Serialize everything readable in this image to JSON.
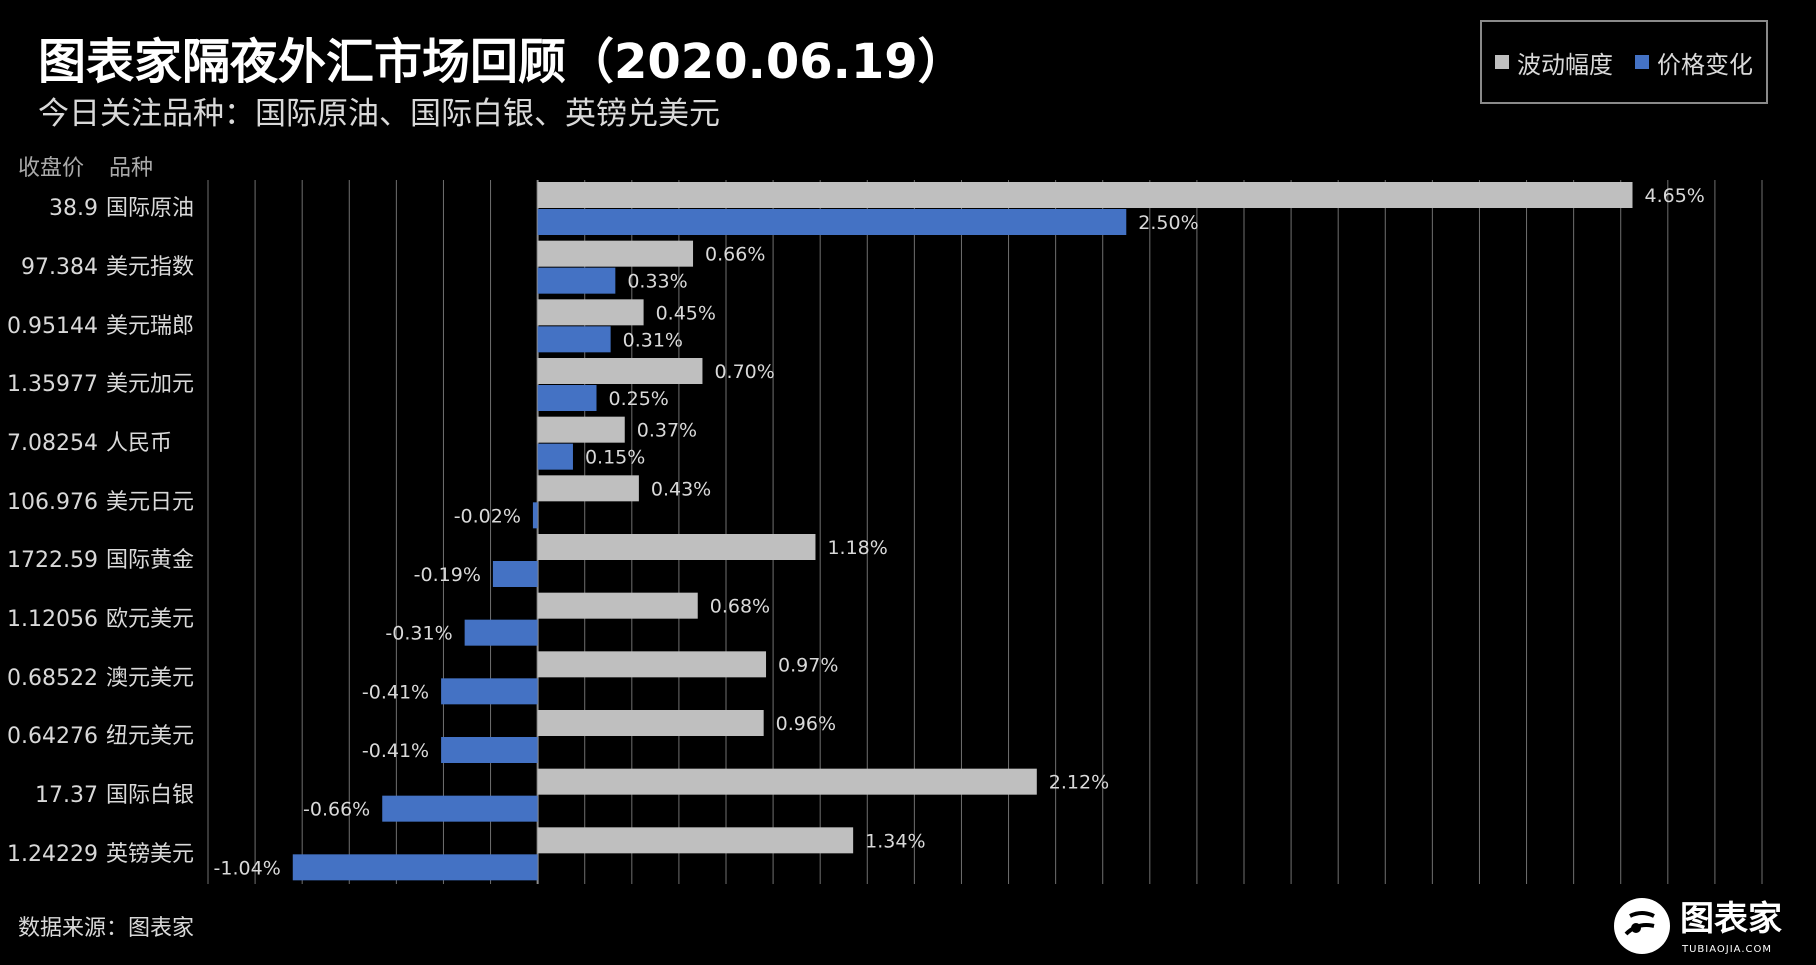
{
  "title": "图表家隔夜外汇市场回顾（2020.06.19）",
  "subtitle": "今日关注品种：国际原油、国际白银、英镑兑美元",
  "column_headers": {
    "price": "收盘价",
    "name": "品种"
  },
  "source": "数据来源：图表家",
  "logo": {
    "text": "图表家",
    "subtext": "TUBIAOJIA.COM"
  },
  "colors": {
    "background": "#000000",
    "amplitude": "#bfbfbf",
    "change": "#4472c4",
    "grid": "#6f6f6f",
    "axis": "#8c8c8c"
  },
  "legend": [
    {
      "label": "波动幅度",
      "color": "#bfbfbf"
    },
    {
      "label": "价格变化",
      "color": "#4472c4"
    }
  ],
  "chart_data": {
    "type": "bar",
    "orientation": "horizontal",
    "categories": [
      "国际原油",
      "美元指数",
      "美元瑞郎",
      "美元加元",
      "人民币",
      "美元日元",
      "国际黄金",
      "欧元美元",
      "澳元美元",
      "纽元美元",
      "国际白银",
      "英镑美元"
    ],
    "closing_prices": [
      "38.9",
      "97.384",
      "0.95144",
      "1.35977",
      "7.08254",
      "106.976",
      "1722.59",
      "1.12056",
      "0.68522",
      "0.64276",
      "17.37",
      "1.24229"
    ],
    "series": [
      {
        "name": "波动幅度",
        "values": [
          4.65,
          0.66,
          0.45,
          0.7,
          0.37,
          0.43,
          1.18,
          0.68,
          0.97,
          0.96,
          2.12,
          1.34
        ],
        "labels": [
          "4.65%",
          "0.66%",
          "0.45%",
          "0.70%",
          "0.37%",
          "0.43%",
          "1.18%",
          "0.68%",
          "0.97%",
          "0.96%",
          "2.12%",
          "1.34%"
        ]
      },
      {
        "name": "价格变化",
        "values": [
          2.5,
          0.33,
          0.31,
          0.25,
          0.15,
          -0.02,
          -0.19,
          -0.31,
          -0.41,
          -0.41,
          -0.66,
          -1.04
        ],
        "labels": [
          "2.50%",
          "0.33%",
          "0.31%",
          "0.25%",
          "0.15%",
          "-0.02%",
          "-0.19%",
          "-0.31%",
          "-0.41%",
          "-0.41%",
          "-0.66%",
          "-1.04%"
        ]
      }
    ],
    "xlim": [
      -1.4,
      5.2
    ],
    "grid": true,
    "gridline_step": 0.2,
    "legend_position": "top-right"
  }
}
